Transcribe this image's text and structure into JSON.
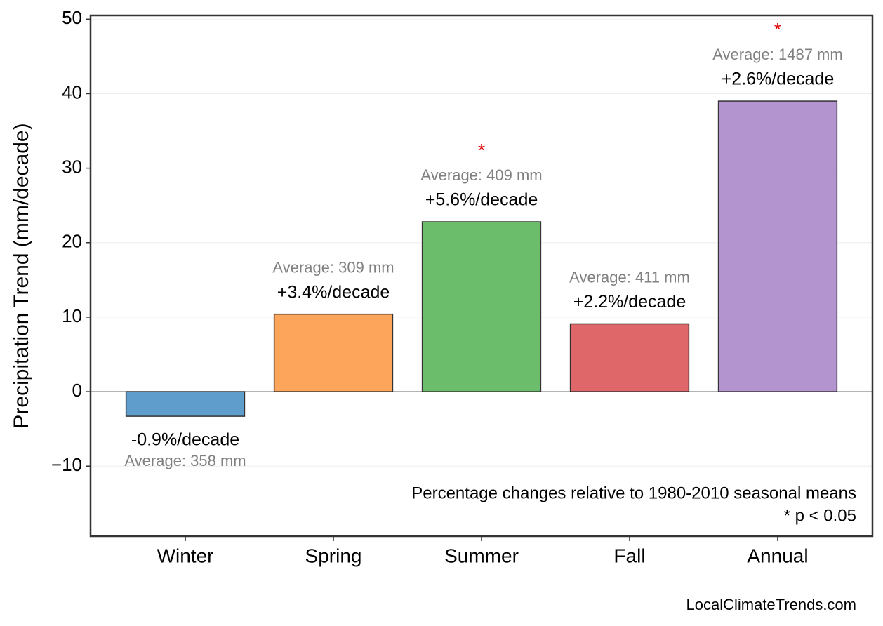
{
  "chart_data": {
    "type": "bar",
    "y_label": "Precipitation Trend (mm/decade)",
    "categories": [
      "Winter",
      "Spring",
      "Summer",
      "Fall",
      "Annual"
    ],
    "values": [
      -3.3,
      10.4,
      22.8,
      9.1,
      39.0
    ],
    "colors": [
      "#5f9dcc",
      "#fda55a",
      "#6bbd6b",
      "#e06769",
      "#b394ce"
    ],
    "percent_labels": [
      "-0.9%/decade",
      "+3.4%/decade",
      "+5.6%/decade",
      "+2.2%/decade",
      "+2.6%/decade"
    ],
    "average_labels": [
      "Average: 358 mm",
      "Average: 309 mm",
      "Average: 409 mm",
      "Average: 411 mm",
      "Average: 1487 mm"
    ],
    "significant": [
      false,
      false,
      true,
      false,
      true
    ],
    "significance_marker": "*",
    "ylim": [
      -19.4,
      50.5
    ],
    "yticks": [
      {
        "value": -10,
        "label": "−10"
      },
      0,
      10,
      20,
      30,
      40,
      50
    ],
    "grid": true,
    "notes": [
      "Percentage changes relative to 1980-2010 seasonal means",
      "* p < 0.05"
    ],
    "source": "LocalClimateTrends.com"
  }
}
